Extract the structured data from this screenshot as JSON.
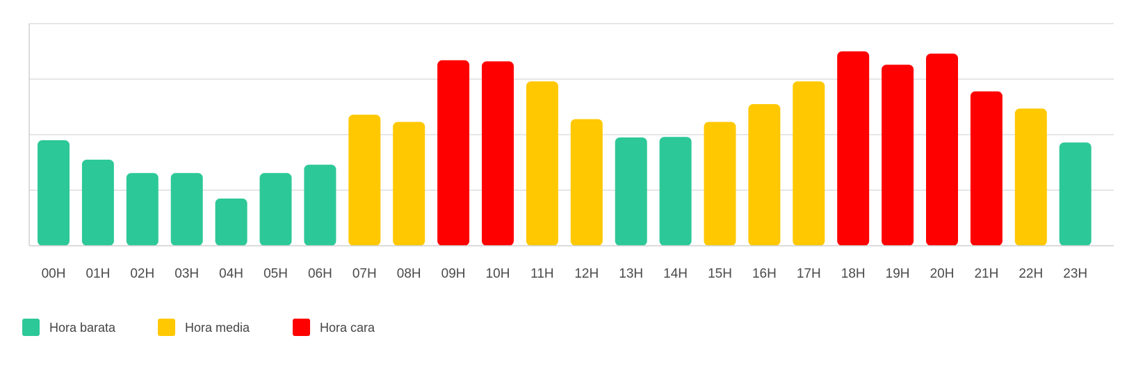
{
  "chart_data": {
    "type": "bar",
    "title": "",
    "xlabel": "",
    "ylabel": "",
    "ylim": [
      0,
      4
    ],
    "grid": true,
    "legend_position": "bottom-left",
    "categories": [
      "00H",
      "01H",
      "02H",
      "03H",
      "04H",
      "05H",
      "06H",
      "07H",
      "08H",
      "09H",
      "10H",
      "11H",
      "12H",
      "13H",
      "14H",
      "15H",
      "16H",
      "17H",
      "18H",
      "19H",
      "20H",
      "21H",
      "22H",
      "23H"
    ],
    "values": [
      1.9,
      1.55,
      1.31,
      1.31,
      0.85,
      1.31,
      1.46,
      2.36,
      2.23,
      3.34,
      3.32,
      2.96,
      2.28,
      1.95,
      1.96,
      2.23,
      2.55,
      2.96,
      3.5,
      3.26,
      3.46,
      2.78,
      2.47,
      1.86
    ],
    "levels": [
      "barata",
      "barata",
      "barata",
      "barata",
      "barata",
      "barata",
      "barata",
      "media",
      "media",
      "cara",
      "cara",
      "media",
      "media",
      "barata",
      "barata",
      "media",
      "media",
      "media",
      "cara",
      "cara",
      "cara",
      "cara",
      "media",
      "barata"
    ],
    "legend": [
      {
        "key": "barata",
        "label": "Hora barata",
        "color": "#2DC897"
      },
      {
        "key": "media",
        "label": "Hora media",
        "color": "#FFC800"
      },
      {
        "key": "cara",
        "label": "Hora cara",
        "color": "#FF0000"
      }
    ]
  }
}
